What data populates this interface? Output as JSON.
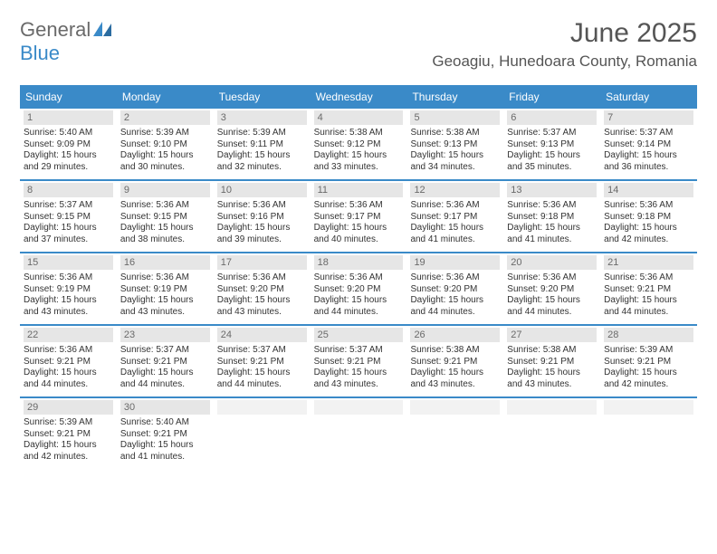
{
  "logo": {
    "text1": "General",
    "text2": "Blue"
  },
  "title": {
    "month": "June 2025",
    "location": "Geoagiu, Hunedoara County, Romania"
  },
  "day_headers": [
    "Sunday",
    "Monday",
    "Tuesday",
    "Wednesday",
    "Thursday",
    "Friday",
    "Saturday"
  ],
  "colors": {
    "accent": "#3a8ac8",
    "header_text": "#ffffff",
    "daynum_bg": "#e6e6e6",
    "daynum_text": "#6a6a6a",
    "body_text": "#333333",
    "title_text": "#555555",
    "logo_gray": "#6a6a6a"
  },
  "weeks": [
    [
      {
        "day": "1",
        "sunrise": "Sunrise: 5:40 AM",
        "sunset": "Sunset: 9:09 PM",
        "daylight1": "Daylight: 15 hours",
        "daylight2": "and 29 minutes."
      },
      {
        "day": "2",
        "sunrise": "Sunrise: 5:39 AM",
        "sunset": "Sunset: 9:10 PM",
        "daylight1": "Daylight: 15 hours",
        "daylight2": "and 30 minutes."
      },
      {
        "day": "3",
        "sunrise": "Sunrise: 5:39 AM",
        "sunset": "Sunset: 9:11 PM",
        "daylight1": "Daylight: 15 hours",
        "daylight2": "and 32 minutes."
      },
      {
        "day": "4",
        "sunrise": "Sunrise: 5:38 AM",
        "sunset": "Sunset: 9:12 PM",
        "daylight1": "Daylight: 15 hours",
        "daylight2": "and 33 minutes."
      },
      {
        "day": "5",
        "sunrise": "Sunrise: 5:38 AM",
        "sunset": "Sunset: 9:13 PM",
        "daylight1": "Daylight: 15 hours",
        "daylight2": "and 34 minutes."
      },
      {
        "day": "6",
        "sunrise": "Sunrise: 5:37 AM",
        "sunset": "Sunset: 9:13 PM",
        "daylight1": "Daylight: 15 hours",
        "daylight2": "and 35 minutes."
      },
      {
        "day": "7",
        "sunrise": "Sunrise: 5:37 AM",
        "sunset": "Sunset: 9:14 PM",
        "daylight1": "Daylight: 15 hours",
        "daylight2": "and 36 minutes."
      }
    ],
    [
      {
        "day": "8",
        "sunrise": "Sunrise: 5:37 AM",
        "sunset": "Sunset: 9:15 PM",
        "daylight1": "Daylight: 15 hours",
        "daylight2": "and 37 minutes."
      },
      {
        "day": "9",
        "sunrise": "Sunrise: 5:36 AM",
        "sunset": "Sunset: 9:15 PM",
        "daylight1": "Daylight: 15 hours",
        "daylight2": "and 38 minutes."
      },
      {
        "day": "10",
        "sunrise": "Sunrise: 5:36 AM",
        "sunset": "Sunset: 9:16 PM",
        "daylight1": "Daylight: 15 hours",
        "daylight2": "and 39 minutes."
      },
      {
        "day": "11",
        "sunrise": "Sunrise: 5:36 AM",
        "sunset": "Sunset: 9:17 PM",
        "daylight1": "Daylight: 15 hours",
        "daylight2": "and 40 minutes."
      },
      {
        "day": "12",
        "sunrise": "Sunrise: 5:36 AM",
        "sunset": "Sunset: 9:17 PM",
        "daylight1": "Daylight: 15 hours",
        "daylight2": "and 41 minutes."
      },
      {
        "day": "13",
        "sunrise": "Sunrise: 5:36 AM",
        "sunset": "Sunset: 9:18 PM",
        "daylight1": "Daylight: 15 hours",
        "daylight2": "and 41 minutes."
      },
      {
        "day": "14",
        "sunrise": "Sunrise: 5:36 AM",
        "sunset": "Sunset: 9:18 PM",
        "daylight1": "Daylight: 15 hours",
        "daylight2": "and 42 minutes."
      }
    ],
    [
      {
        "day": "15",
        "sunrise": "Sunrise: 5:36 AM",
        "sunset": "Sunset: 9:19 PM",
        "daylight1": "Daylight: 15 hours",
        "daylight2": "and 43 minutes."
      },
      {
        "day": "16",
        "sunrise": "Sunrise: 5:36 AM",
        "sunset": "Sunset: 9:19 PM",
        "daylight1": "Daylight: 15 hours",
        "daylight2": "and 43 minutes."
      },
      {
        "day": "17",
        "sunrise": "Sunrise: 5:36 AM",
        "sunset": "Sunset: 9:20 PM",
        "daylight1": "Daylight: 15 hours",
        "daylight2": "and 43 minutes."
      },
      {
        "day": "18",
        "sunrise": "Sunrise: 5:36 AM",
        "sunset": "Sunset: 9:20 PM",
        "daylight1": "Daylight: 15 hours",
        "daylight2": "and 44 minutes."
      },
      {
        "day": "19",
        "sunrise": "Sunrise: 5:36 AM",
        "sunset": "Sunset: 9:20 PM",
        "daylight1": "Daylight: 15 hours",
        "daylight2": "and 44 minutes."
      },
      {
        "day": "20",
        "sunrise": "Sunrise: 5:36 AM",
        "sunset": "Sunset: 9:20 PM",
        "daylight1": "Daylight: 15 hours",
        "daylight2": "and 44 minutes."
      },
      {
        "day": "21",
        "sunrise": "Sunrise: 5:36 AM",
        "sunset": "Sunset: 9:21 PM",
        "daylight1": "Daylight: 15 hours",
        "daylight2": "and 44 minutes."
      }
    ],
    [
      {
        "day": "22",
        "sunrise": "Sunrise: 5:36 AM",
        "sunset": "Sunset: 9:21 PM",
        "daylight1": "Daylight: 15 hours",
        "daylight2": "and 44 minutes."
      },
      {
        "day": "23",
        "sunrise": "Sunrise: 5:37 AM",
        "sunset": "Sunset: 9:21 PM",
        "daylight1": "Daylight: 15 hours",
        "daylight2": "and 44 minutes."
      },
      {
        "day": "24",
        "sunrise": "Sunrise: 5:37 AM",
        "sunset": "Sunset: 9:21 PM",
        "daylight1": "Daylight: 15 hours",
        "daylight2": "and 44 minutes."
      },
      {
        "day": "25",
        "sunrise": "Sunrise: 5:37 AM",
        "sunset": "Sunset: 9:21 PM",
        "daylight1": "Daylight: 15 hours",
        "daylight2": "and 43 minutes."
      },
      {
        "day": "26",
        "sunrise": "Sunrise: 5:38 AM",
        "sunset": "Sunset: 9:21 PM",
        "daylight1": "Daylight: 15 hours",
        "daylight2": "and 43 minutes."
      },
      {
        "day": "27",
        "sunrise": "Sunrise: 5:38 AM",
        "sunset": "Sunset: 9:21 PM",
        "daylight1": "Daylight: 15 hours",
        "daylight2": "and 43 minutes."
      },
      {
        "day": "28",
        "sunrise": "Sunrise: 5:39 AM",
        "sunset": "Sunset: 9:21 PM",
        "daylight1": "Daylight: 15 hours",
        "daylight2": "and 42 minutes."
      }
    ],
    [
      {
        "day": "29",
        "sunrise": "Sunrise: 5:39 AM",
        "sunset": "Sunset: 9:21 PM",
        "daylight1": "Daylight: 15 hours",
        "daylight2": "and 42 minutes."
      },
      {
        "day": "30",
        "sunrise": "Sunrise: 5:40 AM",
        "sunset": "Sunset: 9:21 PM",
        "daylight1": "Daylight: 15 hours",
        "daylight2": "and 41 minutes."
      },
      {
        "empty": true
      },
      {
        "empty": true
      },
      {
        "empty": true
      },
      {
        "empty": true
      },
      {
        "empty": true
      }
    ]
  ]
}
